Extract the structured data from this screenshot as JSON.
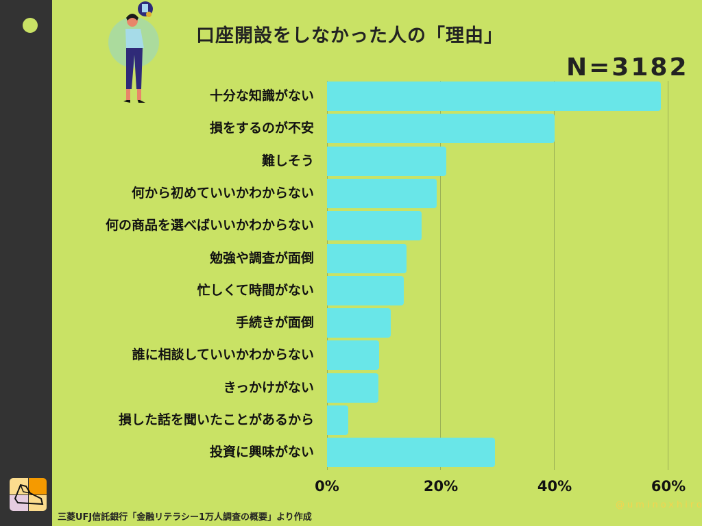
{
  "header": {
    "title": "口座開設をしなかった人の「理由」",
    "sample_size": "N=3182"
  },
  "footer": {
    "source": "三菱UFJ信託銀行「金融リテラシー1万人調査の概要」より作成",
    "watermark": "@uminoxhiro"
  },
  "colors": {
    "background": "#c9e265",
    "sidebar": "#333333",
    "bar": "#69e6e8",
    "text": "#222222",
    "watermark": "#f3d44f"
  },
  "icons": {
    "figure": "thinking-woman-illustration",
    "logo": "sneaker-logo-icon"
  },
  "chart_data": {
    "type": "bar",
    "orientation": "horizontal",
    "title": "口座開設をしなかった人の「理由」",
    "subtitle": "N=3182",
    "categories": [
      "十分な知識がない",
      "損をするのが不安",
      "難しそう",
      "何から初めていいかわからない",
      "何の商品を選べばいいかわからない",
      "勉強や調査が面倒",
      "忙しくて時間がない",
      "手続きが面倒",
      "誰に相談していいかわからない",
      "きっかけがない",
      "損した話を聞いたことがあるから",
      "投資に興味がない"
    ],
    "values": [
      58.8,
      40.1,
      21.0,
      19.3,
      16.7,
      14.0,
      13.5,
      11.2,
      9.2,
      9.1,
      3.7,
      29.6
    ],
    "unit": "%",
    "xlabel": "",
    "ylabel": "",
    "xlim": [
      0,
      60
    ],
    "x_ticks": [
      "0%",
      "20%",
      "40%",
      "60%"
    ],
    "grid": true,
    "legend": null
  }
}
